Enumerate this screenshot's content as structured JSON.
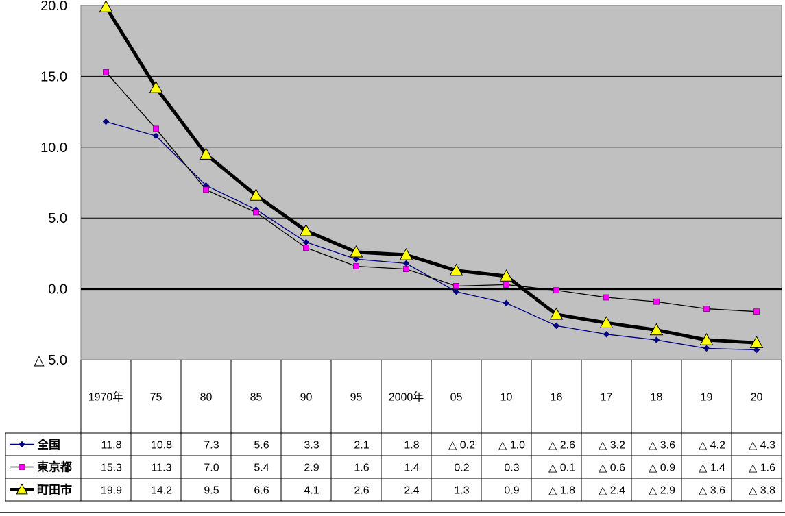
{
  "chart_data": {
    "type": "line",
    "categories": [
      "1970年",
      "75",
      "80",
      "85",
      "90",
      "95",
      "2000年",
      "05",
      "10",
      "16",
      "17",
      "18",
      "19",
      "20"
    ],
    "ylim": [
      -5.0,
      20.0
    ],
    "y_ticks": [
      20.0,
      15.0,
      10.0,
      5.0,
      0.0,
      -5.0
    ],
    "y_tick_labels": [
      "20.0",
      "15.0",
      "10.0",
      "5.0",
      "0.0",
      "△ 5.0"
    ],
    "grid": true,
    "series": [
      {
        "name": "全国",
        "color": "#000080",
        "marker": "diamond",
        "values": [
          11.8,
          10.8,
          7.3,
          5.6,
          3.3,
          2.1,
          1.8,
          -0.2,
          -1.0,
          -2.6,
          -3.2,
          -3.6,
          -4.2,
          -4.3
        ],
        "labels": [
          "11.8",
          "10.8",
          "7.3",
          "5.6",
          "3.3",
          "2.1",
          "1.8",
          "△ 0.2",
          "△ 1.0",
          "△ 2.6",
          "△ 3.2",
          "△ 3.6",
          "△ 4.2",
          "△ 4.3"
        ]
      },
      {
        "name": "東京都",
        "color": "#FF00FF",
        "line_color": "#000000",
        "marker": "square",
        "values": [
          15.3,
          11.3,
          7.0,
          5.4,
          2.9,
          1.6,
          1.4,
          0.2,
          0.3,
          -0.1,
          -0.6,
          -0.9,
          -1.4,
          -1.6
        ],
        "labels": [
          "15.3",
          "11.3",
          "7.0",
          "5.4",
          "2.9",
          "1.6",
          "1.4",
          "0.2",
          "0.3",
          "△ 0.1",
          "△ 0.6",
          "△ 0.9",
          "△ 1.4",
          "△ 1.6"
        ]
      },
      {
        "name": "町田市",
        "color": "#FFFF00",
        "line_color": "#000000",
        "marker": "triangle",
        "values": [
          19.9,
          14.2,
          9.5,
          6.6,
          4.1,
          2.6,
          2.4,
          1.3,
          0.9,
          -1.8,
          -2.4,
          -2.9,
          -3.6,
          -3.8
        ],
        "labels": [
          "19.9",
          "14.2",
          "9.5",
          "6.6",
          "4.1",
          "2.6",
          "2.4",
          "1.3",
          "0.9",
          "△ 1.8",
          "△ 2.4",
          "△ 2.9",
          "△ 3.6",
          "△ 3.8"
        ]
      }
    ],
    "plot_background": "#C0C0C0"
  }
}
